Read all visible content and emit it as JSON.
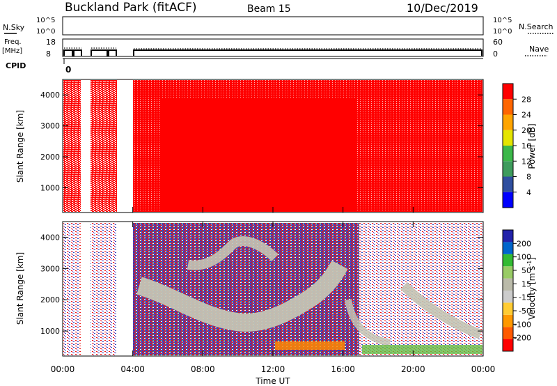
{
  "header": {
    "site": "Buckland Park (fitACF)",
    "beam": "Beam 15",
    "date": "10/Dec/2019"
  },
  "status_panels": {
    "nsky_label": "N.Sky",
    "nsearch_label": "N.Search",
    "nsky_ticks": [
      "10^5",
      "10^0"
    ],
    "nsky_right_ticks": [
      "10^5",
      "10^0"
    ],
    "freq_label_line1": "Freq.",
    "freq_label_line2": "[MHz]",
    "freq_ticks": [
      "18",
      "8"
    ],
    "nave_label": "Nave",
    "nave_ticks": [
      "60",
      "0"
    ],
    "cpid_label": "CPID",
    "cpid_value": "0"
  },
  "colors": {
    "power_fill": "#ff0000",
    "power_scale": [
      "#0000ff",
      "#2f4f9f",
      "#3e9c5d",
      "#3cb84a",
      "#e5e500",
      "#ffa500",
      "#ff6600",
      "#ff0000"
    ],
    "velocity_scale": [
      "#ff0000",
      "#ff5a00",
      "#ff9900",
      "#ffcc33",
      "#cccccc",
      "#bbbbaa",
      "#99cc66",
      "#33bb33",
      "#0066cc",
      "#2222aa"
    ]
  },
  "chart_data": [
    {
      "type": "heatmap",
      "name": "power",
      "ylabel": "Slant Range [km]",
      "ylim": [
        200,
        4500
      ],
      "yticks": [
        "4000",
        "3000",
        "2000",
        "1000"
      ],
      "colorbar_label": "Power [dB]",
      "colorbar_ticks": [
        "28",
        "24",
        "20",
        "16",
        "12",
        "8",
        "4"
      ],
      "colorbar_range": [
        0,
        32
      ],
      "dominant_value_db": 30,
      "data_gaps_ut_hours": [
        [
          0.33,
          0.42
        ],
        [
          1.0,
          1.33
        ],
        [
          2.9,
          3.95
        ]
      ]
    },
    {
      "type": "heatmap",
      "name": "velocity",
      "ylabel": "Slant Range [km]",
      "ylim": [
        200,
        4500
      ],
      "yticks": [
        "4000",
        "3000",
        "2000",
        "1000"
      ],
      "colorbar_label_text": "Velocity [m s",
      "colorbar_label_sup": "-1",
      "colorbar_label_end": "]",
      "colorbar_ticks": [
        "200",
        "100",
        "50",
        "15",
        "-15",
        "-50",
        "-100",
        "-200"
      ],
      "xlabel": "Time UT",
      "xticks": [
        "00:00",
        "04:00",
        "08:00",
        "12:00",
        "16:00",
        "20:00",
        "00:00"
      ],
      "xlim_hours": [
        0,
        24
      ]
    }
  ]
}
